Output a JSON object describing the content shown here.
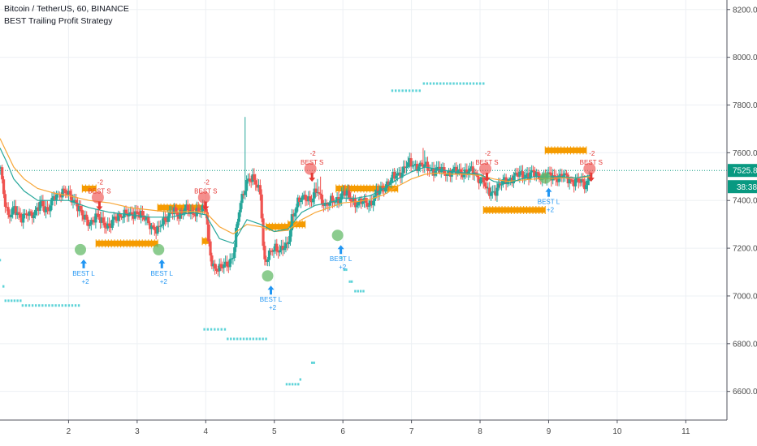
{
  "legend": {
    "symbol": "Bitcoin / TetherUS, 60, BINANCE",
    "indicator": "BEST Trailing Profit Strategy"
  },
  "price_badge": {
    "value": "7525.81",
    "countdown": "38:38"
  },
  "colors": {
    "up": "#26a69a",
    "down": "#ef5350",
    "ema_fast": "#26a69a",
    "ema_slow": "#f7a637",
    "trail": "#5ed3d8",
    "band": "#f59b00",
    "badge": "#089981",
    "long": "#2196f3",
    "short": "#e53935",
    "long_bubble": "#66bb6a",
    "short_bubble": "#ef5350"
  },
  "chart_data": {
    "type": "candlestick",
    "xlim": [
      1.0,
      11.6
    ],
    "ylim": [
      6480,
      8240
    ],
    "x_ticks": [
      2,
      3,
      4,
      5,
      6,
      7,
      8,
      9,
      10,
      11
    ],
    "x_tick_labels": [
      "2",
      "3",
      "4",
      "5",
      "6",
      "7",
      "8",
      "9",
      "10",
      "11"
    ],
    "y_ticks": [
      6600,
      6800,
      7000,
      7200,
      7400,
      7600,
      7800,
      8000,
      8200
    ],
    "y_tick_labels": [
      "6600.00",
      "6800.00",
      "7000.00",
      "7200.00",
      "7400.00",
      "7600.00",
      "7800.00",
      "8000.00",
      "8200.00"
    ],
    "grid": true,
    "last_price": 7525.81,
    "anchors": [
      [
        1.0,
        7560
      ],
      [
        1.06,
        7400
      ],
      [
        1.12,
        7330
      ],
      [
        1.2,
        7380
      ],
      [
        1.3,
        7310
      ],
      [
        1.4,
        7360
      ],
      [
        1.5,
        7330
      ],
      [
        1.6,
        7400
      ],
      [
        1.7,
        7350
      ],
      [
        1.8,
        7420
      ],
      [
        1.9,
        7440
      ],
      [
        2.0,
        7420
      ],
      [
        2.1,
        7400
      ],
      [
        2.2,
        7330
      ],
      [
        2.3,
        7310
      ],
      [
        2.4,
        7330
      ],
      [
        2.5,
        7310
      ],
      [
        2.6,
        7290
      ],
      [
        2.7,
        7330
      ],
      [
        2.8,
        7350
      ],
      [
        2.9,
        7330
      ],
      [
        3.0,
        7360
      ],
      [
        3.1,
        7320
      ],
      [
        3.2,
        7300
      ],
      [
        3.3,
        7270
      ],
      [
        3.4,
        7320
      ],
      [
        3.5,
        7360
      ],
      [
        3.6,
        7330
      ],
      [
        3.7,
        7380
      ],
      [
        3.8,
        7330
      ],
      [
        3.9,
        7370
      ],
      [
        4.0,
        7360
      ],
      [
        4.05,
        7200
      ],
      [
        4.1,
        7130
      ],
      [
        4.2,
        7110
      ],
      [
        4.3,
        7130
      ],
      [
        4.4,
        7170
      ],
      [
        4.5,
        7380
      ],
      [
        4.6,
        7490
      ],
      [
        4.7,
        7480
      ],
      [
        4.8,
        7440
      ],
      [
        4.85,
        7140
      ],
      [
        4.9,
        7150
      ],
      [
        5.0,
        7210
      ],
      [
        5.1,
        7190
      ],
      [
        5.2,
        7210
      ],
      [
        5.25,
        7330
      ],
      [
        5.35,
        7390
      ],
      [
        5.45,
        7420
      ],
      [
        5.55,
        7400
      ],
      [
        5.62,
        7440
      ],
      [
        5.75,
        7380
      ],
      [
        5.9,
        7400
      ],
      [
        6.0,
        7430
      ],
      [
        6.2,
        7390
      ],
      [
        6.4,
        7390
      ],
      [
        6.6,
        7460
      ],
      [
        6.8,
        7510
      ],
      [
        6.95,
        7550
      ],
      [
        7.1,
        7550
      ],
      [
        7.3,
        7530
      ],
      [
        7.5,
        7520
      ],
      [
        7.7,
        7520
      ],
      [
        7.9,
        7520
      ],
      [
        8.05,
        7480
      ],
      [
        8.1,
        7430
      ],
      [
        8.2,
        7440
      ],
      [
        8.4,
        7490
      ],
      [
        8.6,
        7510
      ],
      [
        8.8,
        7510
      ],
      [
        9.0,
        7500
      ],
      [
        9.2,
        7500
      ],
      [
        9.4,
        7480
      ],
      [
        9.5,
        7470
      ],
      [
        9.55,
        7470
      ],
      [
        9.62,
        7525.81
      ]
    ],
    "spikes": [
      [
        4.57,
        7750
      ],
      [
        5.62,
        7490
      ],
      [
        5.67,
        7500
      ],
      [
        7.18,
        7620
      ],
      [
        7.2,
        7610
      ],
      [
        4.03,
        7230
      ]
    ],
    "ema_fast": [
      [
        1.0,
        7620
      ],
      [
        1.1,
        7560
      ],
      [
        1.2,
        7490
      ],
      [
        1.35,
        7440
      ],
      [
        1.55,
        7400
      ],
      [
        1.8,
        7400
      ],
      [
        2.0,
        7400
      ],
      [
        2.3,
        7370
      ],
      [
        2.6,
        7350
      ],
      [
        2.9,
        7340
      ],
      [
        3.2,
        7330
      ],
      [
        3.5,
        7330
      ],
      [
        3.8,
        7350
      ],
      [
        4.0,
        7340
      ],
      [
        4.2,
        7240
      ],
      [
        4.4,
        7220
      ],
      [
        4.6,
        7320
      ],
      [
        4.8,
        7300
      ],
      [
        5.0,
        7270
      ],
      [
        5.2,
        7280
      ],
      [
        5.4,
        7350
      ],
      [
        5.6,
        7380
      ],
      [
        5.8,
        7390
      ],
      [
        6.0,
        7410
      ],
      [
        6.2,
        7410
      ],
      [
        6.4,
        7420
      ],
      [
        6.6,
        7450
      ],
      [
        6.8,
        7490
      ],
      [
        7.0,
        7520
      ],
      [
        7.2,
        7540
      ],
      [
        7.4,
        7530
      ],
      [
        7.6,
        7520
      ],
      [
        7.8,
        7515
      ],
      [
        8.0,
        7510
      ],
      [
        8.2,
        7480
      ],
      [
        8.4,
        7470
      ],
      [
        8.6,
        7490
      ],
      [
        8.8,
        7500
      ],
      [
        9.0,
        7500
      ],
      [
        9.2,
        7500
      ],
      [
        9.4,
        7495
      ],
      [
        9.62,
        7505
      ]
    ],
    "ema_slow": [
      [
        1.0,
        7660
      ],
      [
        1.1,
        7600
      ],
      [
        1.2,
        7540
      ],
      [
        1.35,
        7490
      ],
      [
        1.55,
        7450
      ],
      [
        1.8,
        7430
      ],
      [
        2.0,
        7420
      ],
      [
        2.3,
        7400
      ],
      [
        2.6,
        7390
      ],
      [
        2.9,
        7370
      ],
      [
        3.2,
        7360
      ],
      [
        3.5,
        7350
      ],
      [
        3.8,
        7355
      ],
      [
        4.0,
        7350
      ],
      [
        4.2,
        7290
      ],
      [
        4.4,
        7260
      ],
      [
        4.6,
        7300
      ],
      [
        4.8,
        7290
      ],
      [
        5.0,
        7270
      ],
      [
        5.2,
        7275
      ],
      [
        5.4,
        7320
      ],
      [
        5.6,
        7350
      ],
      [
        5.8,
        7370
      ],
      [
        6.0,
        7390
      ],
      [
        6.2,
        7395
      ],
      [
        6.4,
        7405
      ],
      [
        6.6,
        7425
      ],
      [
        6.8,
        7460
      ],
      [
        7.0,
        7490
      ],
      [
        7.2,
        7510
      ],
      [
        7.4,
        7515
      ],
      [
        7.6,
        7510
      ],
      [
        7.8,
        7510
      ],
      [
        8.0,
        7505
      ],
      [
        8.2,
        7490
      ],
      [
        8.4,
        7480
      ],
      [
        8.6,
        7485
      ],
      [
        8.8,
        7490
      ],
      [
        9.0,
        7492
      ],
      [
        9.2,
        7495
      ],
      [
        9.4,
        7495
      ],
      [
        9.62,
        7500
      ]
    ],
    "trail_dots": [
      {
        "x0": 1.0,
        "x1": 1.0,
        "y": 7150
      },
      {
        "x0": 1.05,
        "x1": 1.05,
        "y": 7040
      },
      {
        "x0": 1.08,
        "x1": 1.3,
        "y": 6980
      },
      {
        "x0": 1.33,
        "x1": 2.15,
        "y": 6960
      },
      {
        "x0": 3.98,
        "x1": 4.28,
        "y": 6860
      },
      {
        "x0": 4.32,
        "x1": 4.88,
        "y": 6820
      },
      {
        "x0": 5.18,
        "x1": 5.35,
        "y": 6630
      },
      {
        "x0": 5.38,
        "x1": 5.4,
        "y": 6650
      },
      {
        "x0": 5.55,
        "x1": 5.58,
        "y": 6720
      },
      {
        "x0": 5.98,
        "x1": 6.0,
        "y": 7160
      },
      {
        "x0": 6.02,
        "x1": 6.05,
        "y": 7110
      },
      {
        "x0": 6.1,
        "x1": 6.13,
        "y": 7060
      },
      {
        "x0": 6.18,
        "x1": 6.3,
        "y": 7020
      },
      {
        "x0": 6.72,
        "x1": 7.12,
        "y": 7860
      },
      {
        "x0": 7.18,
        "x1": 8.05,
        "y": 7890
      }
    ],
    "bands": [
      {
        "x0": 2.2,
        "x1": 2.4,
        "y": 7450
      },
      {
        "x0": 2.4,
        "x1": 3.3,
        "y": 7220
      },
      {
        "x0": 3.3,
        "x1": 3.95,
        "y": 7370
      },
      {
        "x0": 3.95,
        "x1": 4.05,
        "y": 7230
      },
      {
        "x0": 4.88,
        "x1": 5.2,
        "y": 7290
      },
      {
        "x0": 5.2,
        "x1": 5.45,
        "y": 7300
      },
      {
        "x0": 5.9,
        "x1": 6.8,
        "y": 7450
      },
      {
        "x0": 8.05,
        "x1": 8.95,
        "y": 7360
      },
      {
        "x0": 8.95,
        "x1": 9.55,
        "y": 7610
      }
    ],
    "signals": [
      {
        "kind": "long",
        "x": 2.22,
        "y": 7160,
        "label": "BEST L",
        "value": "+2"
      },
      {
        "kind": "long",
        "x": 3.36,
        "y": 7160,
        "label": "BEST L",
        "value": "+2"
      },
      {
        "kind": "long",
        "x": 4.95,
        "y": 7050,
        "label": "BEST L",
        "value": "+2"
      },
      {
        "kind": "long",
        "x": 5.97,
        "y": 7220,
        "label": "BEST L",
        "value": "+2"
      },
      {
        "kind": "long",
        "x": 9.0,
        "y": 7460,
        "label": "BEST L",
        "value": "+2"
      },
      {
        "kind": "short",
        "x": 2.45,
        "y": 7440,
        "label": "BEST S",
        "value": "-2"
      },
      {
        "kind": "short",
        "x": 4.0,
        "y": 7440,
        "label": "BEST S",
        "value": "-2"
      },
      {
        "kind": "short",
        "x": 5.55,
        "y": 7560,
        "label": "BEST S",
        "value": "-2"
      },
      {
        "kind": "short",
        "x": 8.1,
        "y": 7560,
        "label": "BEST S",
        "value": "-2"
      },
      {
        "kind": "short",
        "x": 9.62,
        "y": 7560,
        "label": "BEST S",
        "value": "-2"
      }
    ]
  }
}
